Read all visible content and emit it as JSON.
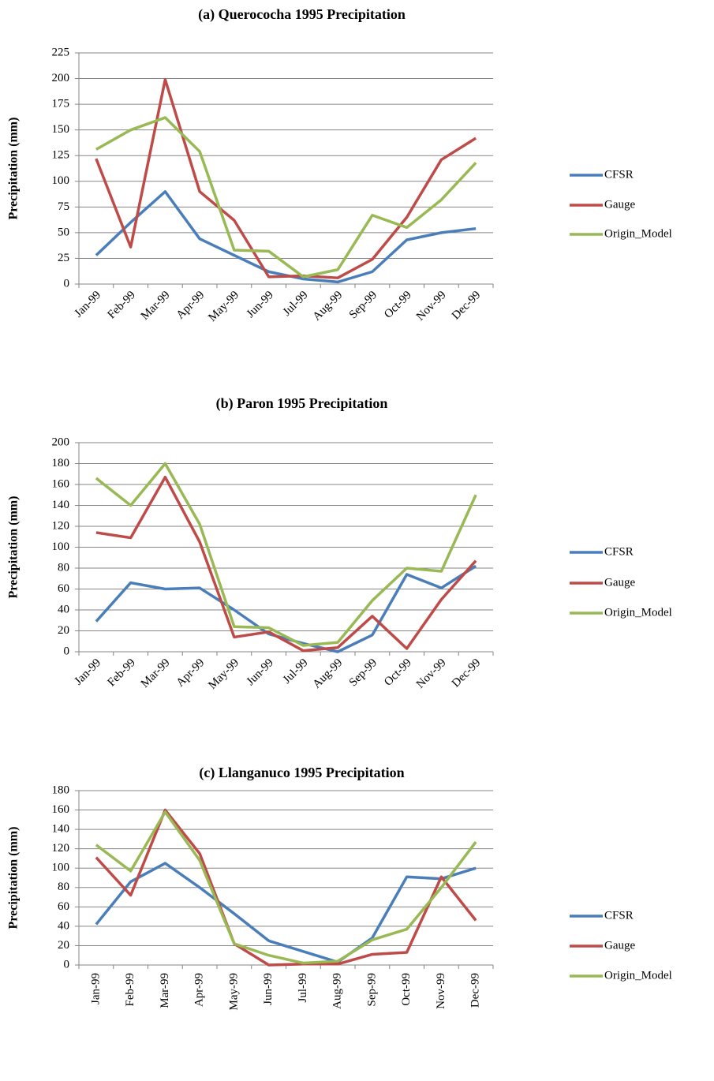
{
  "chart_data": [
    {
      "type": "line",
      "title": "(a) Querococha 1995 Precipitation",
      "y_label": "Precipitation (mm)",
      "categories": [
        "Jan-99",
        "Feb-99",
        "Mar-99",
        "Apr-99",
        "May-99",
        "Jun-99",
        "Jul-99",
        "Aug-99",
        "Sep-99",
        "Oct-99",
        "Nov-99",
        "Dec-99"
      ],
      "series": [
        {
          "name": "CFSR",
          "color": "#4a7ebb",
          "values": [
            28,
            60,
            90,
            44,
            28,
            12,
            5,
            2,
            12,
            43,
            50,
            54
          ]
        },
        {
          "name": "Gauge",
          "color": "#be4b48",
          "values": [
            122,
            36,
            199,
            90,
            62,
            7,
            8,
            6,
            24,
            65,
            121,
            142
          ]
        },
        {
          "name": "Origin_Model",
          "color": "#98b954",
          "values": [
            131,
            150,
            162,
            129,
            33,
            32,
            7,
            14,
            67,
            55,
            82,
            118
          ]
        }
      ],
      "ylim": [
        0,
        225
      ],
      "yticks": [
        0,
        25,
        50,
        75,
        100,
        125,
        150,
        175,
        200,
        225
      ],
      "grid": true,
      "legend": "right"
    },
    {
      "type": "line",
      "title": "(b) Paron 1995 Precipitation",
      "y_label": "Precipitation (mm)",
      "categories": [
        "Jan-99",
        "Feb-99",
        "Mar-99",
        "Apr-99",
        "May-99",
        "Jun-99",
        "Jul-99",
        "Aug-99",
        "Sep-99",
        "Oct-99",
        "Nov-99",
        "Dec-99"
      ],
      "series": [
        {
          "name": "CFSR",
          "color": "#4a7ebb",
          "values": [
            29,
            66,
            60,
            61,
            40,
            17,
            8,
            0,
            16,
            74,
            61,
            82
          ]
        },
        {
          "name": "Gauge",
          "color": "#be4b48",
          "values": [
            114,
            109,
            167,
            105,
            14,
            19,
            1,
            4,
            34,
            3,
            50,
            87
          ]
        },
        {
          "name": "Origin_Model",
          "color": "#98b954",
          "values": [
            166,
            140,
            180,
            122,
            24,
            23,
            6,
            9,
            49,
            80,
            77,
            150
          ]
        }
      ],
      "ylim": [
        0,
        200
      ],
      "yticks": [
        0,
        20,
        40,
        60,
        80,
        100,
        120,
        140,
        160,
        180,
        200
      ],
      "grid": true,
      "legend": "right"
    },
    {
      "type": "line",
      "title": "(c) Llanganuco 1995 Precipitation",
      "y_label": "Precipitation (mm)",
      "categories": [
        "Jan-99",
        "Feb-99",
        "Mar-99",
        "Apr-99",
        "May-99",
        "Jun-99",
        "Jul-99",
        "Aug-99",
        "Sep-99",
        "Oct-99",
        "Nov-99",
        "Dec-99"
      ],
      "series": [
        {
          "name": "CFSR",
          "color": "#4a7ebb",
          "values": [
            42,
            86,
            105,
            80,
            53,
            25,
            14,
            3,
            28,
            91,
            89,
            100
          ]
        },
        {
          "name": "Gauge",
          "color": "#be4b48",
          "values": [
            111,
            72,
            160,
            115,
            22,
            0,
            1,
            1,
            11,
            13,
            91,
            46
          ]
        },
        {
          "name": "Origin_Model",
          "color": "#98b954",
          "values": [
            124,
            97,
            158,
            108,
            22,
            10,
            2,
            4,
            26,
            37,
            80,
            127
          ]
        }
      ],
      "ylim": [
        0,
        180
      ],
      "yticks": [
        0,
        20,
        40,
        60,
        80,
        100,
        120,
        140,
        160,
        180
      ],
      "grid": true,
      "legend": "right"
    }
  ]
}
